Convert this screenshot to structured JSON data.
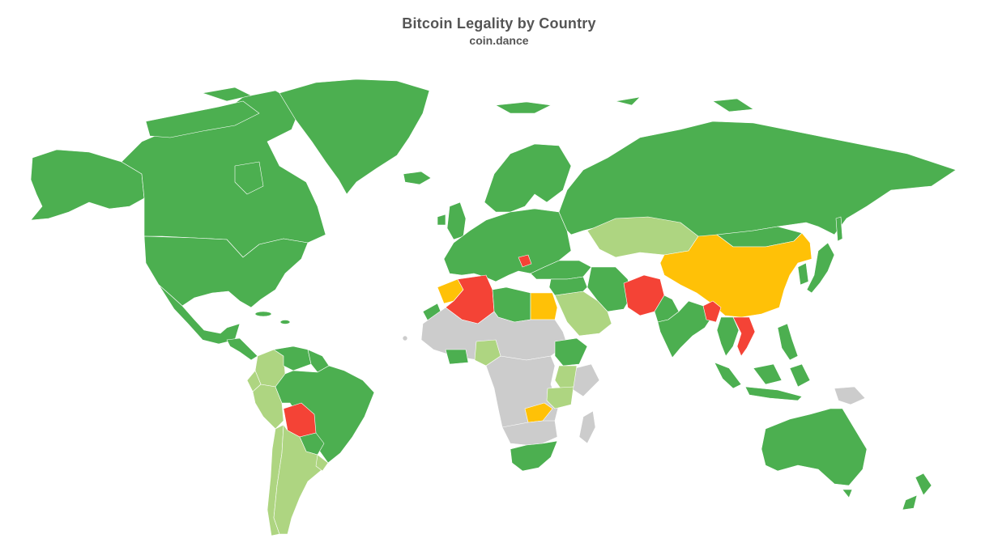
{
  "title": "Bitcoin Legality by Country",
  "subtitle": "coin.dance",
  "colors": {
    "permissive": "#4caf50",
    "contentious": "#aed581",
    "restrictive": "#ffc107",
    "hostile": "#f44336",
    "no_data": "#cccccc"
  },
  "countries": {
    "Canada": "permissive",
    "Alaska": "permissive",
    "Greenland": "permissive",
    "USA": "permissive",
    "Mexico": "permissive",
    "Central-America": "permissive",
    "Colombia": "contentious",
    "Venezuela": "permissive",
    "Guyana": "permissive",
    "Ecuador": "contentious",
    "Peru": "contentious",
    "Brazil": "permissive",
    "Bolivia": "hostile",
    "Paraguay": "permissive",
    "Chile": "contentious",
    "Argentina": "contentious",
    "Uruguay": "contentious",
    "Iceland": "permissive",
    "UK": "permissive",
    "Europe": "permissive",
    "Scandinavia": "permissive",
    "Russia": "permissive",
    "Kazakhstan": "contentious",
    "China": "restrictive",
    "Mongolia": "permissive",
    "Japan": "permissive",
    "Korea": "permissive",
    "Morocco": "restrictive",
    "Algeria": "hostile",
    "Libya": "permissive",
    "Egypt": "restrictive",
    "West-Sahara": "permissive",
    "Sahel": "no_data",
    "Central-Africa": "no_data",
    "Nigeria": "contentious",
    "Ghana": "permissive",
    "Ethiopia": "permissive",
    "Kenya": "contentious",
    "Tanzania": "contentious",
    "Zambia": "restrictive",
    "South-Africa": "permissive",
    "Madagascar": "no_data",
    "Saudi-Arabia": "contentious",
    "Turkey": "permissive",
    "Iran": "permissive",
    "Afghanistan": "hostile",
    "Pakistan": "permissive",
    "India": "permissive",
    "Bangladesh": "hostile",
    "Vietnam": "hostile",
    "Thailand": "permissive",
    "Indonesia": "permissive",
    "Philippines": "permissive",
    "Australia": "permissive",
    "New-Zealand": "permissive",
    "PNG": "no_data"
  }
}
